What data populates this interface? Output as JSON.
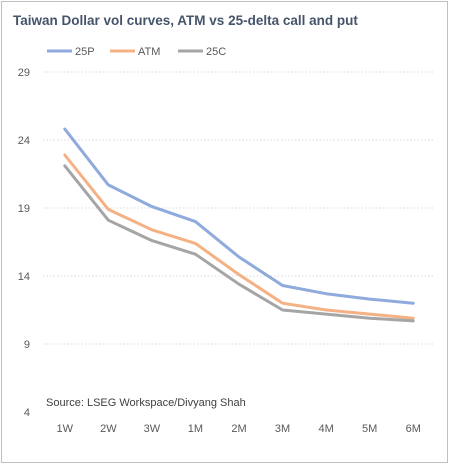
{
  "chart_data": {
    "type": "line",
    "title": "Taiwan Dollar vol curves, ATM vs 25-delta call and put",
    "xlabel": "",
    "ylabel": "",
    "categories": [
      "1W",
      "2W",
      "3W",
      "1M",
      "2M",
      "3M",
      "4M",
      "5M",
      "6M"
    ],
    "y_ticks": [
      4,
      9,
      14,
      19,
      24,
      29
    ],
    "ylim": [
      4,
      29
    ],
    "grid": "horizontal dotted",
    "legend_position": "top",
    "series": [
      {
        "name": "25P",
        "color": "#8faadc",
        "values": [
          24.8,
          20.7,
          19.1,
          18.0,
          15.4,
          13.3,
          12.7,
          12.3,
          12.0
        ]
      },
      {
        "name": "ATM",
        "color": "#f4b183",
        "values": [
          22.9,
          18.9,
          17.4,
          16.4,
          14.1,
          12.0,
          11.5,
          11.2,
          10.9
        ]
      },
      {
        "name": "25C",
        "color": "#a5a5a5",
        "values": [
          22.1,
          18.1,
          16.6,
          15.6,
          13.4,
          11.5,
          11.2,
          10.9,
          10.7
        ]
      }
    ],
    "annotation": "Source: LSEG Workspace/Divyang Shah"
  }
}
